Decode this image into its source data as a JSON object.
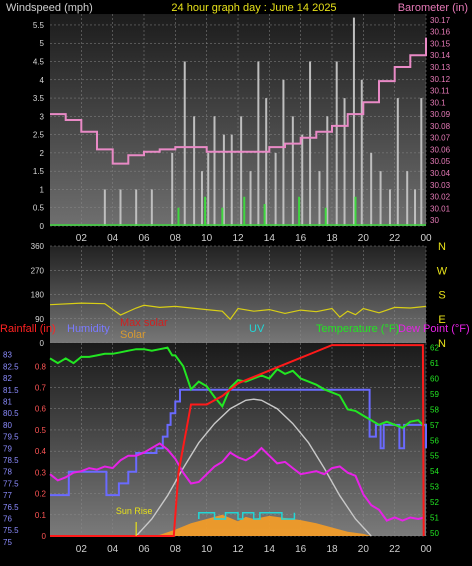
{
  "chart_data": [
    {
      "type": "line",
      "panel": "top",
      "header": {
        "left": "Windspeed (mph)",
        "center": "24 hour graph day : June 14 2025",
        "right": "Barometer (in)"
      },
      "x_ticks": [
        "02",
        "04",
        "06",
        "08",
        "10",
        "12",
        "14",
        "16",
        "18",
        "20",
        "22",
        "00"
      ],
      "x_range_hours": [
        0,
        24
      ],
      "left_axis": {
        "label": "Windspeed (mph)",
        "range": [
          0,
          5.8
        ],
        "ticks": [
          "0",
          "0.5",
          "1",
          "1.5",
          "2",
          "2.5",
          "3",
          "3.5",
          "4",
          "4.5",
          "5",
          "5.5"
        ]
      },
      "right_axis": {
        "label": "Barometer (in)",
        "range": [
          29.995,
          30.175
        ],
        "ticks": [
          "30",
          "30.01",
          "30.02",
          "30.03",
          "30.04",
          "30.05",
          "30.06",
          "30.07",
          "30.08",
          "30.09",
          "30.1",
          "30.11",
          "30.12",
          "30.13",
          "30.14",
          "30.15",
          "30.16",
          "30.17"
        ]
      },
      "series": [
        {
          "name": "Barometer",
          "axis": "right",
          "color": "#e98ac6",
          "x": [
            0,
            1,
            2,
            3,
            4,
            5,
            6,
            7,
            8,
            9,
            10,
            11,
            12,
            13,
            14,
            15,
            16,
            17,
            18,
            19,
            20,
            21,
            22,
            23,
            24
          ],
          "y": [
            30.09,
            30.085,
            30.075,
            30.06,
            30.048,
            30.055,
            30.058,
            30.06,
            30.062,
            30.062,
            30.058,
            30.058,
            30.058,
            30.058,
            30.062,
            30.065,
            30.07,
            30.075,
            30.08,
            30.09,
            30.1,
            30.118,
            30.13,
            30.14,
            30.155
          ]
        },
        {
          "name": "Windspeed",
          "axis": "left",
          "color": "#bfbfbf",
          "x": [
            3.5,
            4.5,
            5.5,
            6.5,
            7.8,
            8.6,
            9.2,
            9.7,
            10.1,
            10.5,
            11.1,
            11.6,
            12.2,
            12.8,
            13.3,
            13.8,
            14.4,
            14.9,
            15.5,
            16.1,
            16.6,
            17.2,
            17.7,
            18.3,
            18.8,
            19.4,
            19.9,
            20.5,
            21.1,
            21.7,
            22.2,
            22.8,
            23.3,
            23.7
          ],
          "y": [
            1,
            1,
            1,
            1,
            2,
            4.5,
            3,
            1.5,
            2,
            3,
            2.5,
            2.5,
            3,
            1.5,
            4.5,
            3.5,
            2,
            4,
            3,
            2.5,
            4.5,
            1.5,
            3,
            4.5,
            3.5,
            5.7,
            4,
            2,
            1.5,
            1,
            3.5,
            1.5,
            1,
            3.5
          ]
        },
        {
          "name": "Wind gust",
          "axis": "left",
          "color": "#3fd63f",
          "x": [
            8.2,
            9.9,
            11.0,
            12.4,
            13.7,
            15.9,
            17.6,
            19.5
          ],
          "y": [
            0.5,
            0.8,
            0.5,
            0.8,
            0.6,
            0.8,
            0.5,
            0.8
          ]
        }
      ]
    },
    {
      "type": "line",
      "panel": "wind-direction",
      "left_ticks": [
        "360",
        "270",
        "180",
        "90",
        "0"
      ],
      "compass_labels": [
        "N",
        "W",
        "S",
        "E",
        "N"
      ],
      "y_range": [
        0,
        360
      ],
      "series": [
        {
          "name": "Wind direction",
          "color": "#d9cf15",
          "x": [
            0,
            2,
            3.5,
            4.5,
            5.5,
            6,
            7,
            8,
            9,
            10,
            11,
            11.5,
            12,
            13,
            14,
            15,
            16,
            17,
            18,
            18.5,
            19,
            19.5,
            20,
            21,
            22,
            23,
            24
          ],
          "y": [
            142,
            148,
            146,
            104,
            130,
            140,
            132,
            136,
            130,
            124,
            118,
            88,
            128,
            118,
            124,
            110,
            122,
            116,
            128,
            96,
            118,
            105,
            128,
            112,
            132,
            130,
            136
          ]
        }
      ]
    },
    {
      "type": "line",
      "panel": "bottom",
      "labels": {
        "rainfall": "Rainfall (in)",
        "humidity": "Humidity",
        "max_solar": "Max solar",
        "solar": "Solar",
        "uv": "UV",
        "temperature": "Temperature (°F)",
        "dew_point": "Dew Point (°F)"
      },
      "annotation": "Sun Rise",
      "sunrise_hour": 5.5,
      "x_ticks": [
        "02",
        "04",
        "06",
        "08",
        "10",
        "12",
        "14",
        "16",
        "18",
        "20",
        "22",
        "00"
      ],
      "rainfall_axis": {
        "range": [
          0,
          0.91
        ],
        "ticks": [
          "0",
          "0.1",
          "0.2",
          "0.3",
          "0.4",
          "0.5",
          "0.6",
          "0.7",
          "0.8"
        ]
      },
      "humidity_axis": {
        "range": [
          75.25,
          83.5
        ],
        "ticks": [
          "75",
          "75.5",
          "76",
          "76.5",
          "77",
          "77.5",
          "78",
          "78.5",
          "79",
          "79.5",
          "80",
          "80.5",
          "81",
          "81.5",
          "82",
          "82.5",
          "83"
        ]
      },
      "temperature_axis": {
        "range": [
          49.8,
          62.3
        ],
        "ticks": [
          "50",
          "51",
          "52",
          "53",
          "54",
          "55",
          "56",
          "57",
          "58",
          "59",
          "60",
          "61",
          "62"
        ]
      },
      "series": [
        {
          "name": "Rainfall",
          "axis": "rainfall",
          "color": "#ff1a1a",
          "x": [
            0,
            7.9,
            8.2,
            9,
            10,
            11,
            12,
            13,
            14,
            15,
            16,
            17,
            18,
            19,
            20,
            21,
            22,
            23,
            23.8,
            23.85
          ],
          "y": [
            0,
            0,
            0.3,
            0.62,
            0.62,
            0.66,
            0.72,
            0.75,
            0.78,
            0.81,
            0.84,
            0.87,
            0.9,
            0.9,
            0.9,
            0.9,
            0.9,
            0.9,
            0.9,
            0
          ]
        },
        {
          "name": "Humidity",
          "axis": "humidity",
          "color": "#6a6aff",
          "x": [
            0,
            0.6,
            1.2,
            1.6,
            2.1,
            3.3,
            3.6,
            4.4,
            5.0,
            5.3,
            5.5,
            6.1,
            6.8,
            7.2,
            7.5,
            7.7,
            8.0,
            8.3,
            9.5,
            15.0,
            15.5,
            18.5,
            19.0,
            20.2,
            20.4,
            20.8,
            21.1,
            21.3,
            21.9,
            22.3,
            22.6,
            23.2,
            23.6,
            24
          ],
          "y": [
            77.0,
            77.0,
            78.0,
            78.0,
            78.0,
            78.0,
            77.0,
            77.5,
            78.0,
            78.0,
            78.8,
            78.8,
            79.0,
            79.5,
            80.0,
            80.5,
            81.0,
            81.5,
            81.5,
            81.5,
            81.5,
            81.5,
            81.5,
            81.5,
            79.5,
            80.0,
            79.0,
            80.0,
            80.0,
            79.0,
            80.0,
            80.0,
            80.0,
            79.0
          ]
        },
        {
          "name": "Temperature",
          "axis": "temperature",
          "color": "#22e622",
          "x": [
            0,
            0.5,
            1.0,
            1.5,
            2.0,
            2.5,
            3.0,
            3.5,
            4.0,
            4.5,
            5.0,
            5.5,
            6.0,
            6.5,
            7.0,
            7.5,
            7.8,
            8.0,
            8.5,
            9.0,
            9.5,
            10.0,
            10.5,
            11.0,
            11.5,
            12.0,
            12.5,
            13.0,
            13.5,
            14.0,
            14.5,
            15.0,
            15.5,
            16.0,
            16.5,
            17.0,
            17.5,
            18.0,
            18.5,
            19.0,
            19.5,
            20.0,
            20.5,
            21.0,
            21.5,
            22.0,
            22.5,
            23.0,
            23.5,
            23.9
          ],
          "y": [
            61.3,
            61.0,
            61.3,
            61.0,
            61.4,
            61.4,
            61.5,
            61.6,
            61.6,
            61.7,
            61.8,
            61.9,
            61.9,
            61.8,
            61.9,
            62.0,
            61.5,
            61.5,
            60.8,
            59.3,
            59.8,
            59.5,
            58.8,
            58.2,
            59.4,
            59.9,
            59.8,
            60.0,
            60.2,
            60.0,
            60.6,
            60.3,
            60.5,
            60.0,
            59.8,
            59.6,
            59.3,
            59.1,
            58.9,
            58.0,
            57.9,
            57.6,
            57.3,
            57.0,
            57.2,
            57.0,
            56.8,
            57.2,
            57.3,
            56.9
          ]
        },
        {
          "name": "Dew Point",
          "axis": "temperature",
          "color": "#e622e6",
          "x": [
            0,
            0.5,
            1.0,
            1.5,
            2.0,
            2.5,
            3.0,
            3.5,
            4.0,
            4.5,
            5.0,
            5.5,
            6.0,
            6.5,
            7.0,
            7.5,
            8.0,
            8.5,
            9.0,
            9.5,
            10.0,
            10.5,
            11.0,
            11.5,
            12.0,
            12.5,
            13.0,
            13.5,
            14.0,
            14.5,
            15.0,
            15.5,
            16.0,
            16.5,
            17.0,
            17.5,
            18.0,
            18.5,
            19.0,
            19.5,
            20.0,
            20.5,
            21.0,
            21.5,
            22.0,
            22.5,
            23.0,
            23.5,
            23.9
          ],
          "y": [
            53.8,
            53.4,
            53.6,
            53.9,
            54.0,
            54.2,
            54.1,
            54.3,
            54.2,
            54.7,
            55.0,
            55.0,
            55.2,
            55.5,
            55.8,
            55.4,
            54.8,
            53.9,
            53.2,
            53.3,
            53.8,
            54.3,
            54.6,
            55.2,
            54.9,
            54.7,
            55.0,
            55.5,
            55.0,
            54.5,
            54.6,
            54.2,
            53.8,
            53.9,
            54.0,
            53.8,
            54.2,
            54.3,
            53.9,
            53.7,
            52.5,
            51.8,
            51.5,
            50.8,
            51.0,
            50.8,
            51.0,
            50.9,
            51.0
          ]
        },
        {
          "name": "Max solar",
          "axis": "rainfall",
          "color": "#c8c8c8",
          "x": [
            5.5,
            6.5,
            7.5,
            8.5,
            9.5,
            10.5,
            11.5,
            12.5,
            13.0,
            13.5,
            14.5,
            15.5,
            16.5,
            17.5,
            18.5,
            19.5,
            20.5
          ],
          "y": [
            0,
            0.08,
            0.19,
            0.32,
            0.44,
            0.53,
            0.6,
            0.64,
            0.645,
            0.64,
            0.6,
            0.53,
            0.44,
            0.32,
            0.19,
            0.08,
            0
          ]
        },
        {
          "name": "Solar",
          "axis": "rainfall",
          "color": "#ffa020",
          "x": [
            5.5,
            7.0,
            8.0,
            9.0,
            10.0,
            10.5,
            11.0,
            12.0,
            12.5,
            13.0,
            14.0,
            15.0,
            16.0,
            17.0,
            18.0,
            19.0,
            20.0,
            20.5
          ],
          "y": [
            0,
            0.005,
            0.03,
            0.06,
            0.08,
            0.09,
            0.1,
            0.07,
            0.09,
            0.08,
            0.095,
            0.085,
            0.075,
            0.06,
            0.04,
            0.02,
            0.01,
            0
          ]
        },
        {
          "name": "UV",
          "axis": "rainfall",
          "color": "#22d6d6",
          "x": [
            9.5,
            9.5,
            10.5,
            10.5,
            11.2,
            11.2,
            12.0,
            12.0,
            12.3,
            12.3,
            13.0,
            13.0,
            13.4,
            13.4,
            14.8,
            14.8,
            15.6,
            15.6
          ],
          "y": [
            0.08,
            0.11,
            0.11,
            0.08,
            0.08,
            0.11,
            0.11,
            0.08,
            0.08,
            0.11,
            0.11,
            0.08,
            0.08,
            0.11,
            0.11,
            0.08,
            0.08,
            0.11
          ]
        }
      ]
    }
  ]
}
